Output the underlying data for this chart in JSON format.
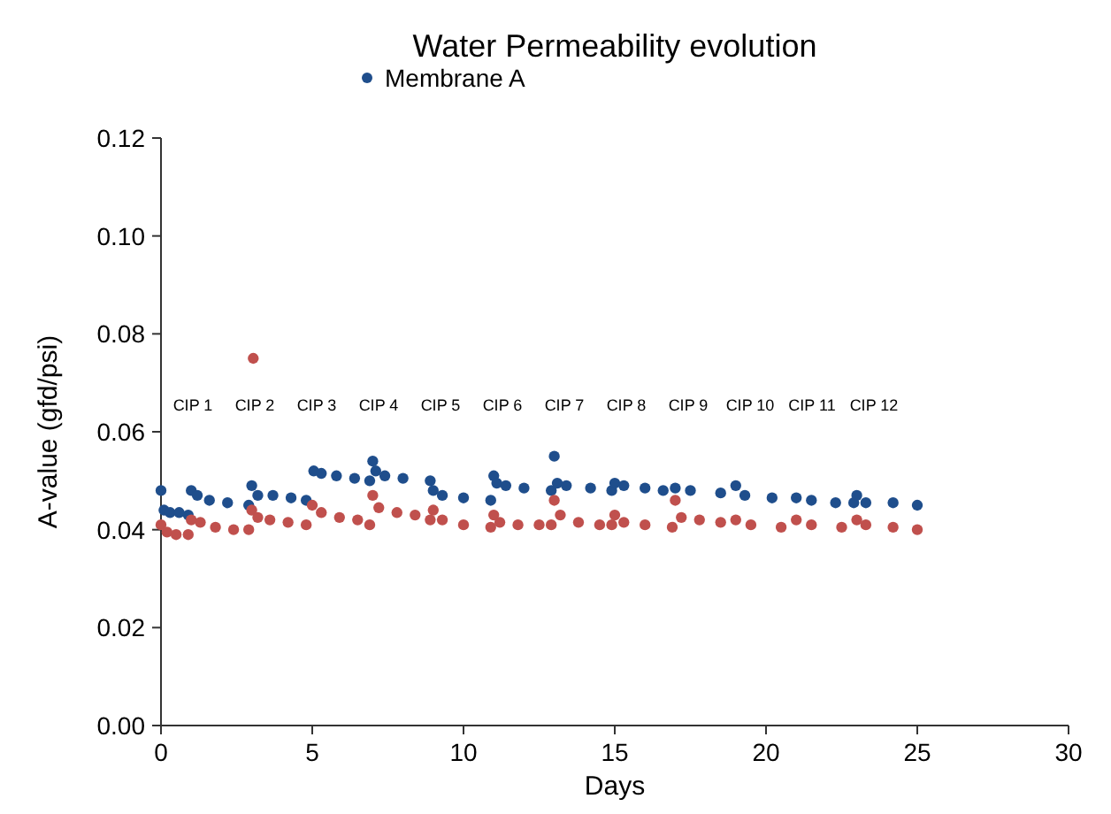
{
  "chart_data": {
    "type": "scatter",
    "title": "Water Permeability evolution",
    "xlabel": "Days",
    "ylabel": "A-value (gfd/psi)",
    "xlim": [
      0,
      30
    ],
    "xticks": [
      0,
      5,
      10,
      15,
      20,
      25,
      30
    ],
    "ylim": [
      0,
      0.12
    ],
    "yticks": [
      {
        "value": 0,
        "label": "0.00"
      },
      {
        "value": 0.02,
        "label": "0.02"
      },
      {
        "value": 0.04,
        "label": "0.04"
      },
      {
        "value": 0.06,
        "label": "0.06"
      },
      {
        "value": 0.08,
        "label": "0.08"
      },
      {
        "value": 0.1,
        "label": "0.10"
      },
      {
        "value": 0.12,
        "label": "0.12"
      }
    ],
    "grid": false,
    "legend": "top",
    "marker": "circle",
    "series": [
      {
        "name": "Membrane A",
        "color": "#1f4e8c",
        "x": [
          0,
          0.1,
          0.3,
          0.6,
          0.9,
          1.0,
          1.2,
          1.6,
          2.2,
          2.9,
          3.0,
          3.2,
          3.7,
          4.3,
          4.8,
          5.05,
          5.3,
          5.8,
          6.4,
          6.9,
          7.0,
          7.1,
          7.4,
          8.0,
          8.9,
          9.0,
          9.3,
          10.0,
          10.9,
          11.0,
          11.1,
          11.4,
          12.0,
          12.9,
          13.0,
          13.1,
          13.4,
          14.2,
          14.9,
          15.0,
          15.3,
          16.0,
          16.6,
          17.0,
          17.5,
          18.5,
          19.0,
          19.3,
          20.2,
          21.0,
          21.5,
          22.3,
          22.9,
          23.0,
          23.3,
          24.2,
          25.0
        ],
        "values": [
          0.048,
          0.044,
          0.0435,
          0.0435,
          0.043,
          0.048,
          0.047,
          0.046,
          0.0455,
          0.045,
          0.049,
          0.047,
          0.047,
          0.0465,
          0.046,
          0.052,
          0.0515,
          0.051,
          0.0505,
          0.05,
          0.054,
          0.052,
          0.051,
          0.0505,
          0.05,
          0.048,
          0.047,
          0.0465,
          0.046,
          0.051,
          0.0495,
          0.049,
          0.0485,
          0.048,
          0.055,
          0.0495,
          0.049,
          0.0485,
          0.048,
          0.0495,
          0.049,
          0.0485,
          0.048,
          0.0485,
          0.048,
          0.0475,
          0.049,
          0.047,
          0.0465,
          0.0465,
          0.046,
          0.0455,
          0.0455,
          0.047,
          0.0455,
          0.0455,
          0.045
        ]
      },
      {
        "color": "#c0504d",
        "x": [
          0,
          0.2,
          0.5,
          0.9,
          1.0,
          1.3,
          1.8,
          2.4,
          2.9,
          3.0,
          3.05,
          3.2,
          3.6,
          4.2,
          4.8,
          5.0,
          5.3,
          5.9,
          6.5,
          6.9,
          7.0,
          7.2,
          7.8,
          8.4,
          8.9,
          9.0,
          9.3,
          10.0,
          10.9,
          11.0,
          11.2,
          11.8,
          12.5,
          12.9,
          13.0,
          13.2,
          13.8,
          14.5,
          14.9,
          15.0,
          15.3,
          16.0,
          16.9,
          17.0,
          17.2,
          17.8,
          18.5,
          19.0,
          19.5,
          20.5,
          21.0,
          21.5,
          22.5,
          23.0,
          23.3,
          24.2,
          25.0
        ],
        "values": [
          0.041,
          0.0395,
          0.039,
          0.039,
          0.042,
          0.0415,
          0.0405,
          0.04,
          0.04,
          0.044,
          0.075,
          0.0425,
          0.042,
          0.0415,
          0.041,
          0.045,
          0.0435,
          0.0425,
          0.042,
          0.041,
          0.047,
          0.0445,
          0.0435,
          0.043,
          0.042,
          0.044,
          0.042,
          0.041,
          0.0405,
          0.043,
          0.0415,
          0.041,
          0.041,
          0.041,
          0.046,
          0.043,
          0.0415,
          0.041,
          0.041,
          0.043,
          0.0415,
          0.041,
          0.0405,
          0.046,
          0.0425,
          0.042,
          0.0415,
          0.042,
          0.041,
          0.0405,
          0.042,
          0.041,
          0.0405,
          0.042,
          0.041,
          0.0405,
          0.04
        ]
      }
    ],
    "annotations": [
      "CIP 1",
      "CIP 2",
      "CIP 3",
      "CIP 4",
      "CIP 5",
      "CIP 6",
      "CIP 7",
      "CIP 8",
      "CIP 9",
      "CIP 10",
      "CIP 11",
      "CIP 12"
    ]
  }
}
